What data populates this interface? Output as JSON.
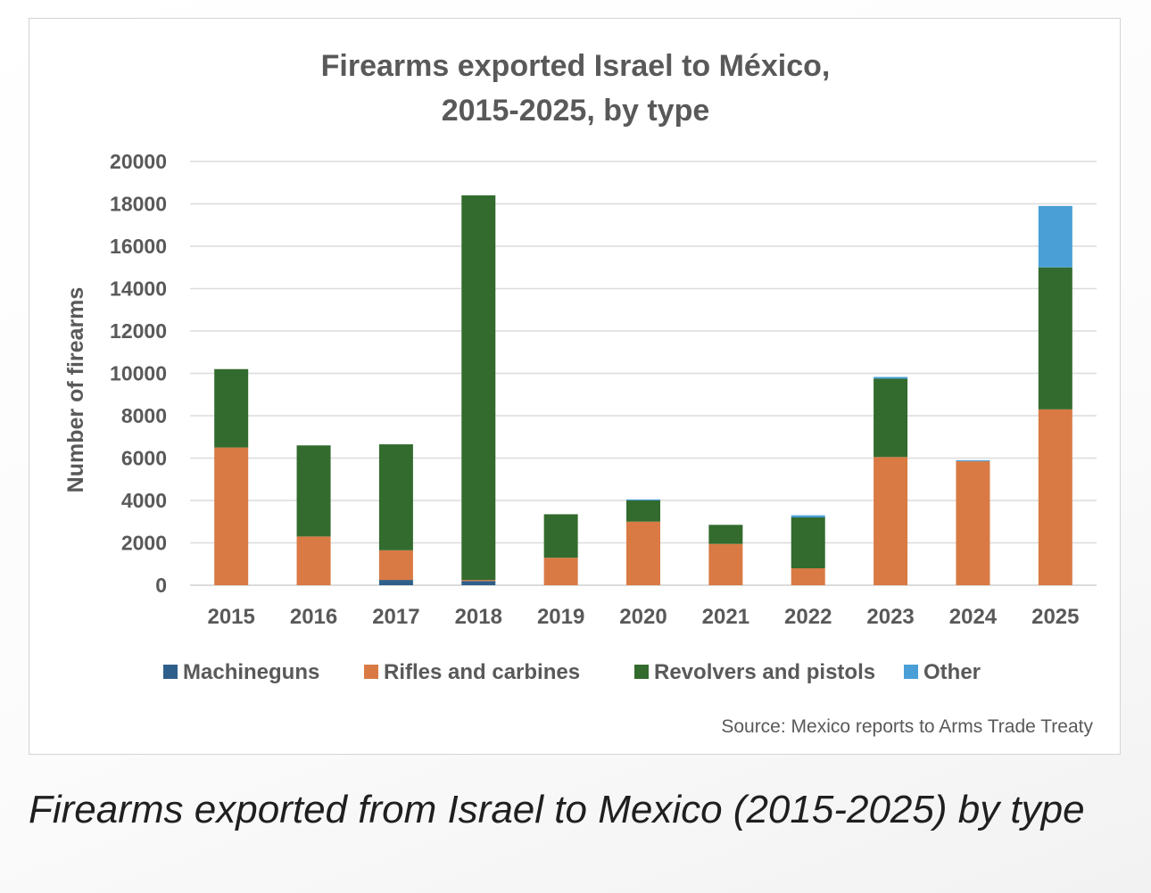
{
  "caption": "Firearms exported from Israel to Mexico (2015-2025) by type",
  "chart_data": {
    "type": "bar",
    "stacked": true,
    "title_lines": [
      "Firearms exported Israel to México,",
      "2015-2025, by type"
    ],
    "ylabel": "Number of firearms",
    "xlabel": "",
    "source": "Source: Mexico reports to Arms Trade Treaty",
    "ylim": [
      0,
      20000
    ],
    "yticks": [
      0,
      2000,
      4000,
      6000,
      8000,
      10000,
      12000,
      14000,
      16000,
      18000,
      20000
    ],
    "grid": true,
    "legend_position": "bottom",
    "categories": [
      "2015",
      "2016",
      "2017",
      "2018",
      "2019",
      "2020",
      "2021",
      "2022",
      "2023",
      "2024",
      "2025"
    ],
    "series": [
      {
        "name": "Machineguns",
        "color": "#2e5f8a",
        "values": [
          0,
          0,
          250,
          200,
          0,
          0,
          0,
          0,
          0,
          0,
          0
        ]
      },
      {
        "name": "Rifles and carbines",
        "color": "#d97a44",
        "values": [
          6500,
          2300,
          1400,
          50,
          1300,
          3000,
          1950,
          800,
          6050,
          5850,
          8300
        ]
      },
      {
        "name": "Revolvers and pistols",
        "color": "#336b2e",
        "values": [
          3700,
          4300,
          5000,
          18150,
          2050,
          1000,
          900,
          2400,
          3700,
          0,
          6700
        ]
      },
      {
        "name": "Other",
        "color": "#4a9fd6",
        "values": [
          0,
          0,
          0,
          0,
          0,
          50,
          0,
          100,
          80,
          50,
          2900
        ]
      }
    ]
  }
}
